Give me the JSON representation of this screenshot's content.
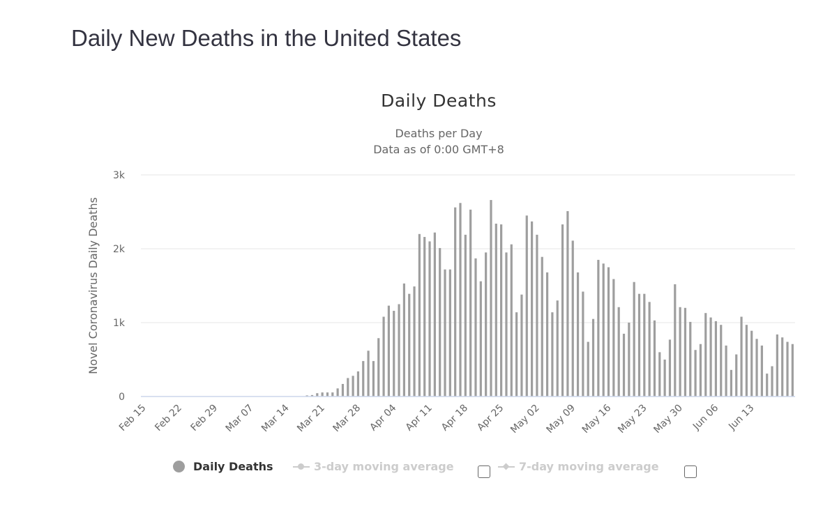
{
  "page": {
    "title": "Daily New Deaths in the United States"
  },
  "legend": {
    "items": [
      {
        "label": "Daily Deaths",
        "active": true,
        "icon": "circle-marker-icon"
      },
      {
        "label": "3-day moving average",
        "active": false,
        "icon": "line-circle-marker-icon"
      },
      {
        "label": "7-day moving average",
        "active": false,
        "icon": "line-diamond-marker-icon"
      }
    ],
    "checkboxes": [
      {
        "label": "3-day moving average toggle",
        "checked": false
      },
      {
        "label": "7-day moving average toggle",
        "checked": false
      }
    ]
  },
  "chart_data": {
    "type": "bar",
    "title": "Daily Deaths",
    "subtitle": [
      "Deaths per Day",
      "Data as of 0:00 GMT+8"
    ],
    "xlabel": "",
    "ylabel": "Novel Coronavirus Daily Deaths",
    "ylim": [
      0,
      3000
    ],
    "yticks": [
      0,
      1000,
      2000,
      3000
    ],
    "ytick_labels": [
      "0",
      "1k",
      "2k",
      "3k"
    ],
    "grid": true,
    "legend_position": "bottom",
    "bar_color": "#9e9e9e",
    "start_date": "Feb 15",
    "xtick_labels": [
      "Feb 15",
      "Feb 22",
      "Feb 29",
      "Mar 07",
      "Mar 14",
      "Mar 21",
      "Mar 28",
      "Apr 04",
      "Apr 11",
      "Apr 18",
      "Apr 25",
      "May 02",
      "May 09",
      "May 16",
      "May 23",
      "May 30",
      "Jun 06",
      "Jun 13"
    ],
    "series": [
      {
        "name": "Daily Deaths",
        "values": [
          0,
          0,
          0,
          0,
          0,
          0,
          0,
          0,
          0,
          0,
          0,
          0,
          0,
          0,
          0,
          0,
          0,
          0,
          0,
          0,
          0,
          0,
          0,
          0,
          0,
          0,
          0,
          0,
          0,
          0,
          0,
          0,
          15,
          20,
          45,
          55,
          55,
          55,
          110,
          170,
          250,
          280,
          340,
          480,
          620,
          480,
          790,
          1080,
          1230,
          1160,
          1250,
          1530,
          1390,
          1490,
          2200,
          2160,
          2100,
          2220,
          2010,
          1720,
          1720,
          2560,
          2620,
          2190,
          2530,
          1870,
          1560,
          1950,
          2660,
          2340,
          2330,
          1950,
          2060,
          1140,
          1380,
          2450,
          2370,
          2190,
          1890,
          1680,
          1140,
          1300,
          2330,
          2510,
          2110,
          1680,
          1420,
          740,
          1050,
          1850,
          1800,
          1750,
          1590,
          1210,
          850,
          1000,
          1550,
          1390,
          1390,
          1280,
          1030,
          600,
          500,
          770,
          1520,
          1210,
          1200,
          1010,
          630,
          710,
          1130,
          1070,
          1020,
          970,
          690,
          360,
          570,
          1080,
          970,
          890,
          780,
          690,
          310,
          410,
          840,
          800,
          740,
          710
        ]
      }
    ]
  }
}
